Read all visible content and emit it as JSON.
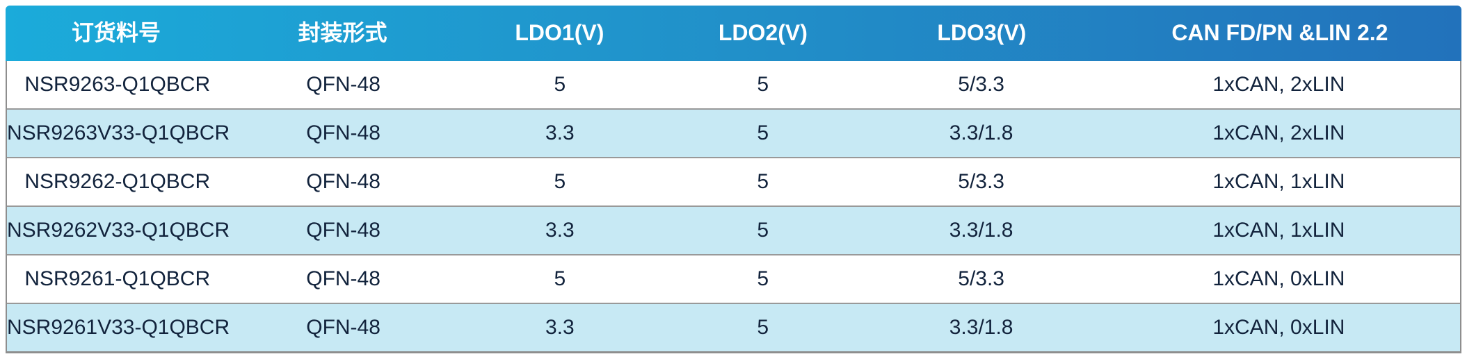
{
  "chart_data": {
    "type": "table",
    "columns": [
      "订货料号",
      "封装形式",
      "LDO1(V)",
      "LDO2(V)",
      "LDO3(V)",
      "CAN FD/PN &LIN 2.2"
    ],
    "rows": [
      [
        "NSR9263-Q1QBCR",
        "QFN-48",
        "5",
        "5",
        "5/3.3",
        "1xCAN, 2xLIN"
      ],
      [
        "NSR9263V33-Q1QBCR",
        "QFN-48",
        "3.3",
        "5",
        "3.3/1.8",
        "1xCAN, 2xLIN"
      ],
      [
        "NSR9262-Q1QBCR",
        "QFN-48",
        "5",
        "5",
        "5/3.3",
        "1xCAN, 1xLIN"
      ],
      [
        "NSR9262V33-Q1QBCR",
        "QFN-48",
        "3.3",
        "5",
        "3.3/1.8",
        "1xCAN, 1xLIN"
      ],
      [
        "NSR9261-Q1QBCR",
        "QFN-48",
        "5",
        "5",
        "5/3.3",
        "1xCAN, 0xLIN"
      ],
      [
        "NSR9261V33-Q1QBCR",
        "QFN-48",
        "3.3",
        "5",
        "3.3/1.8",
        "1xCAN, 0xLIN"
      ]
    ],
    "layout": {
      "header_position": "top",
      "grid": "horizontal-only",
      "row_striping": true
    }
  },
  "colors": {
    "header_gradient_start": "#1BABDA",
    "header_gradient_end": "#2272BB",
    "header_text": "#FFFFFF",
    "row_background": "#FFFFFF",
    "row_alt_background": "#C7E9F4",
    "body_text": "#12233C",
    "border": "#8E8E8E"
  }
}
